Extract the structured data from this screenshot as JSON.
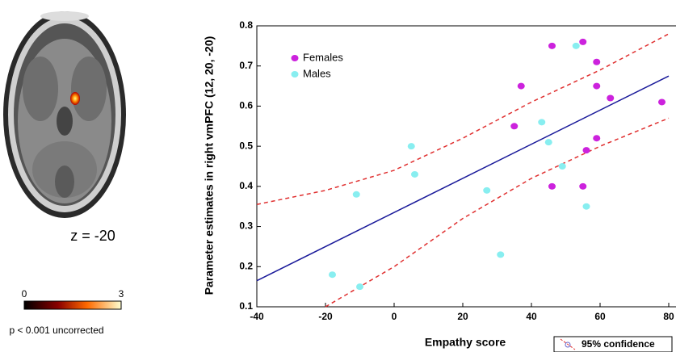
{
  "panel": {
    "slice_label": "z = -20",
    "colorbar": {
      "lim": [
        0,
        3
      ],
      "ticks": [
        0,
        3
      ]
    },
    "threshold": "p < 0.001 uncorrected"
  },
  "chart_data": {
    "type": "scatter",
    "x_label": "Empathy score",
    "y_label": "Parameter estimates in right vmPFC (12, 20, -20)",
    "xlim": [
      -40,
      80
    ],
    "xticks": [
      -40,
      -20,
      0,
      20,
      40,
      60,
      80
    ],
    "ylim": [
      0.1,
      0.8
    ],
    "yticks": [
      0.1,
      0.2,
      0.3,
      0.4,
      0.5,
      0.6,
      0.7,
      0.8
    ],
    "legend": "upper left",
    "series": [
      {
        "name": "Females",
        "color": "#cc22dd",
        "x": [
          35,
          37,
          46,
          55,
          59,
          59,
          63,
          78,
          59,
          56,
          46,
          55
        ],
        "values": [
          0.55,
          0.65,
          0.75,
          0.76,
          0.71,
          0.65,
          0.62,
          0.61,
          0.52,
          0.49,
          0.4,
          0.4
        ]
      },
      {
        "name": "Males",
        "color": "#88eef0",
        "x": [
          53,
          43,
          45,
          5,
          6,
          -11,
          27,
          49,
          56,
          31,
          -18,
          -10
        ],
        "values": [
          0.75,
          0.56,
          0.51,
          0.5,
          0.43,
          0.38,
          0.39,
          0.45,
          0.35,
          0.23,
          0.18,
          0.15
        ]
      }
    ],
    "regression": {
      "color": "#1a1a9a",
      "x": [
        -40,
        80
      ],
      "values": [
        0.165,
        0.675
      ]
    },
    "confidence": {
      "name": "95% confidence",
      "color": "#e03030",
      "upper": {
        "x": [
          -40,
          -20,
          0,
          20,
          40,
          60,
          80
        ],
        "values": [
          0.355,
          0.39,
          0.44,
          0.52,
          0.61,
          0.69,
          0.78
        ]
      },
      "lower": {
        "x": [
          -20,
          0,
          20,
          40,
          60,
          80
        ],
        "values": [
          0.1,
          0.2,
          0.32,
          0.42,
          0.5,
          0.57
        ]
      }
    }
  }
}
